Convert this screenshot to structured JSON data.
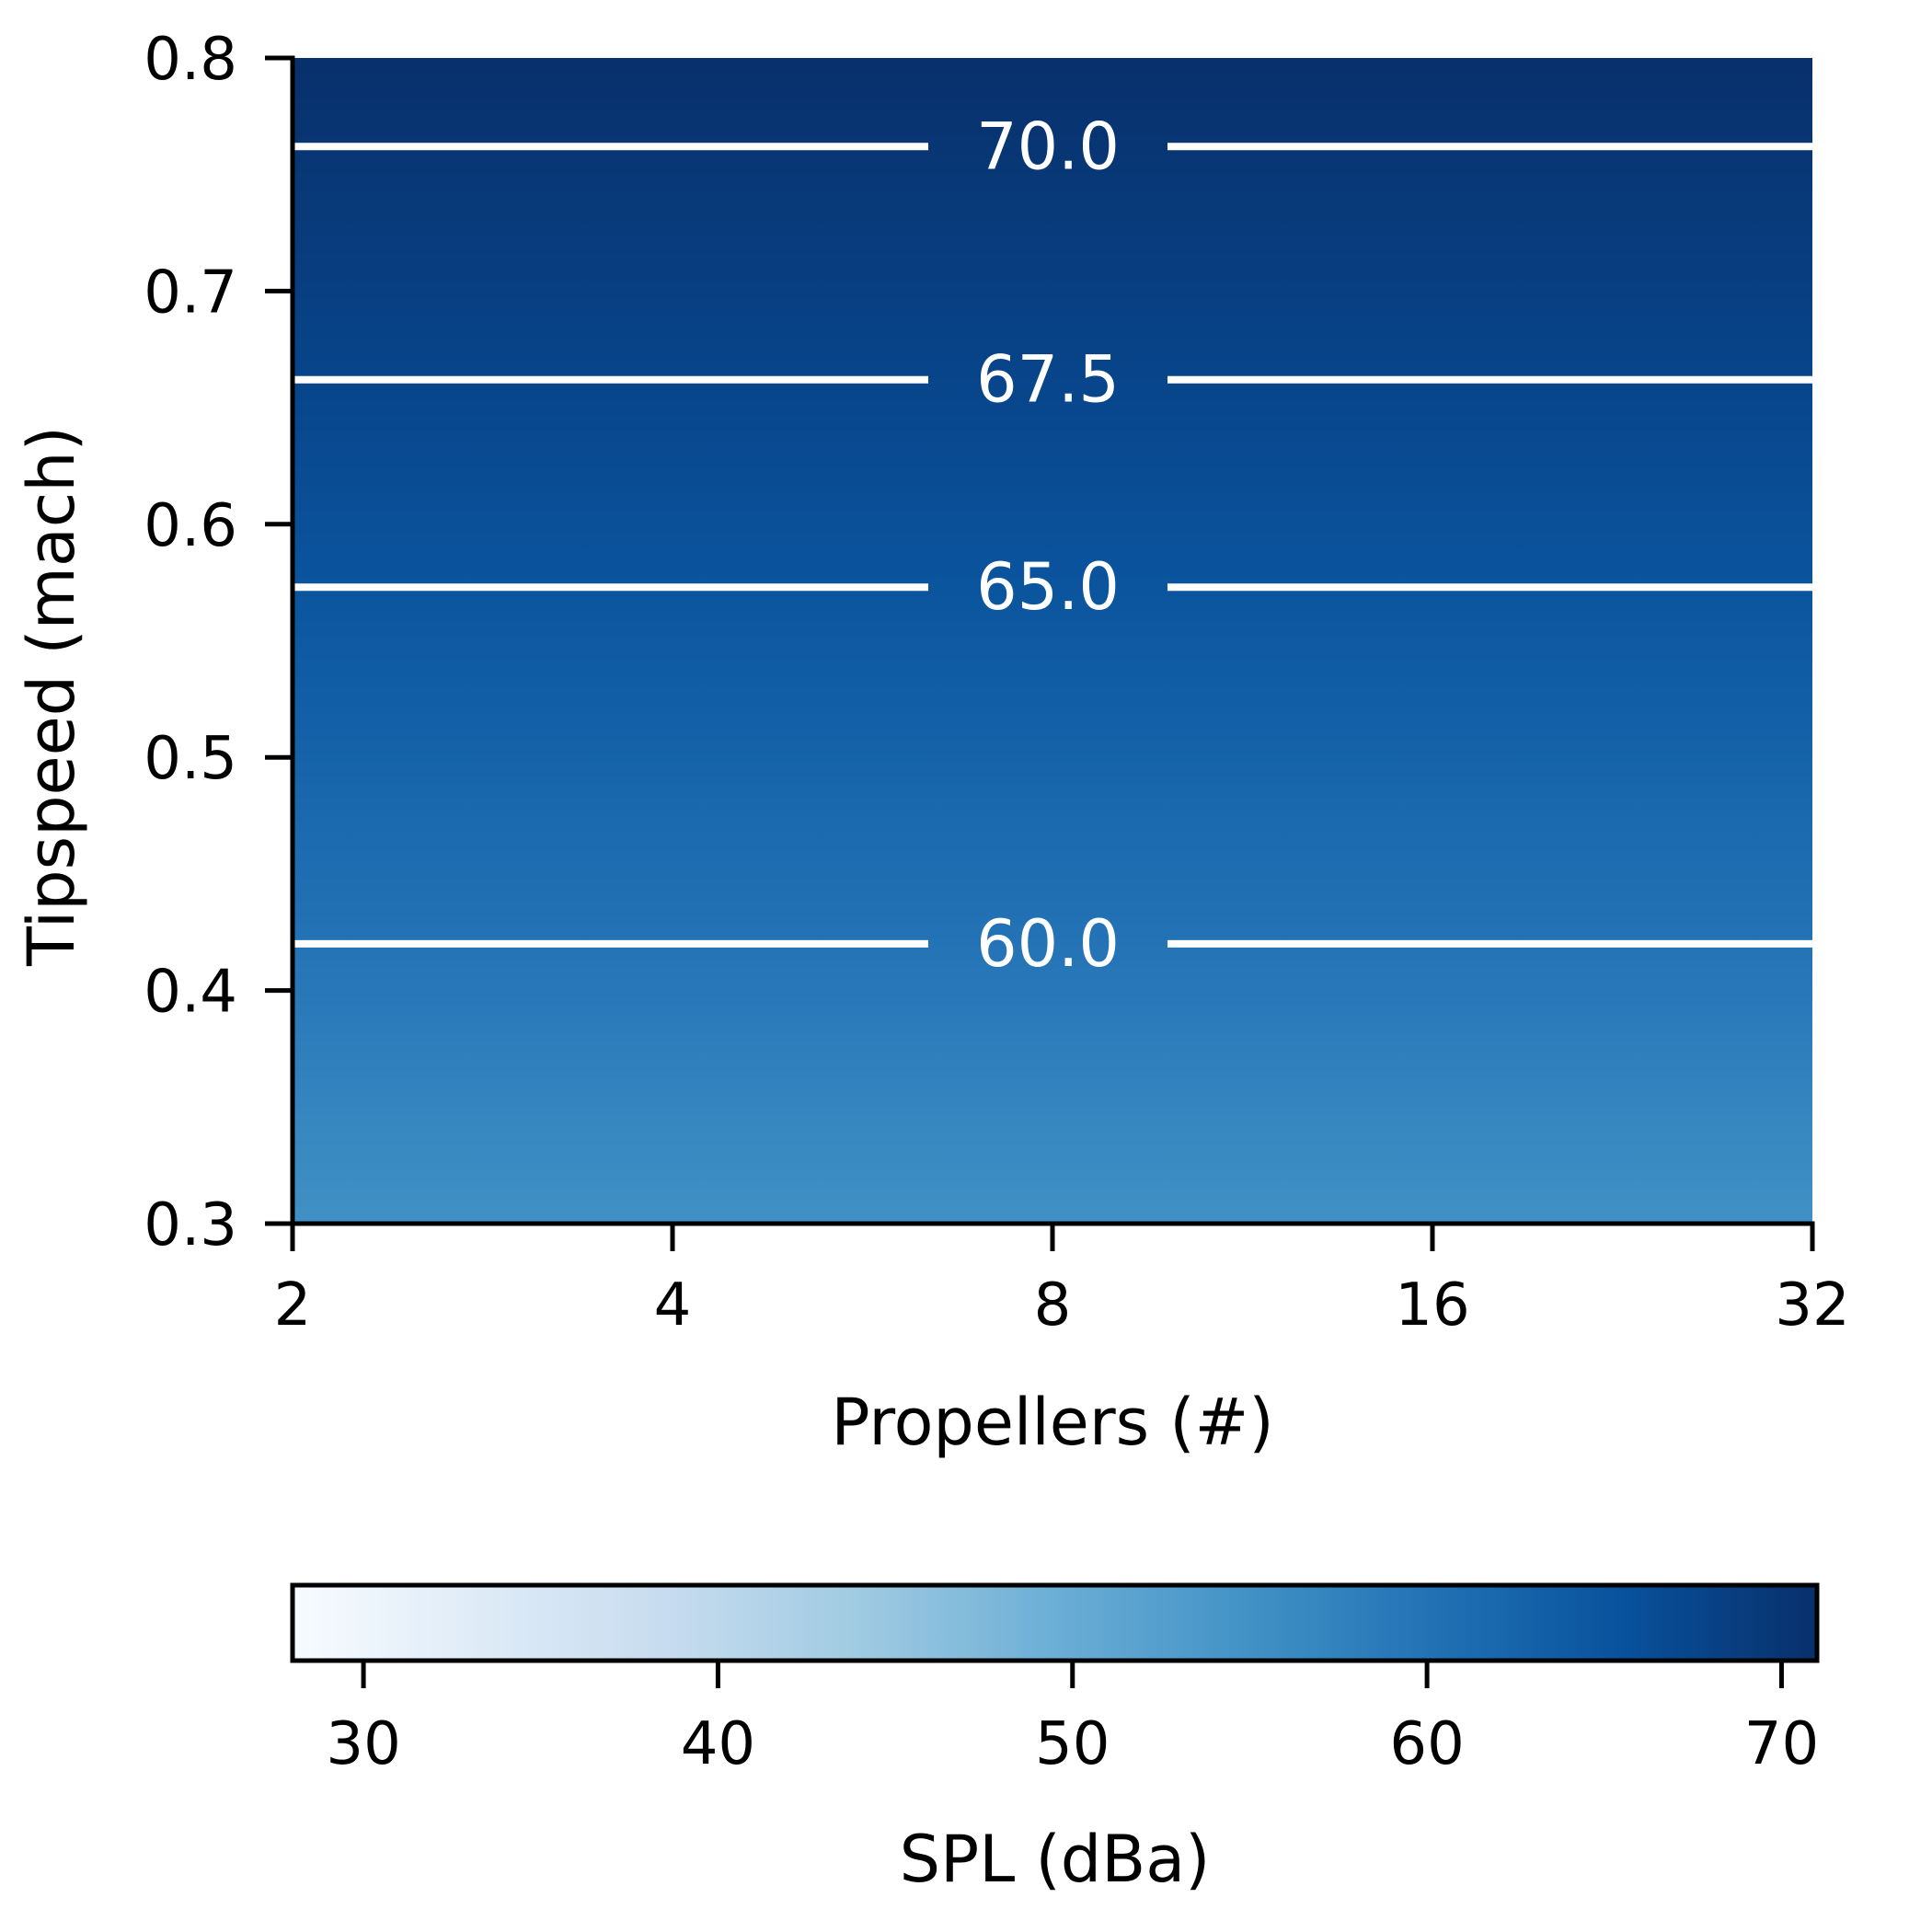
{
  "chart_data": {
    "type": "heatmap",
    "subtype": "filled-contour",
    "title": "",
    "xlabel": "Propellers (#)",
    "ylabel": "Tipspeed (mach)",
    "xscale": "log2",
    "xlim": [
      2,
      32
    ],
    "ylim": [
      0.3,
      0.8
    ],
    "x_ticks": [
      2,
      4,
      8,
      16,
      32
    ],
    "x_tick_labels": [
      "2",
      "4",
      "8",
      "16",
      "32"
    ],
    "y_ticks": [
      0.3,
      0.4,
      0.5,
      0.6,
      0.7,
      0.8
    ],
    "y_tick_labels": [
      "0.3",
      "0.4",
      "0.5",
      "0.6",
      "0.7",
      "0.8"
    ],
    "field_profile": [
      {
        "y": 0.3,
        "value": 55.0
      },
      {
        "y": 0.42,
        "value": 60.0
      },
      {
        "y": 0.57,
        "value": 65.0
      },
      {
        "y": 0.66,
        "value": 67.5
      },
      {
        "y": 0.76,
        "value": 70.0
      },
      {
        "y": 0.8,
        "value": 71.0
      }
    ],
    "contour_lines": [
      {
        "level": 60.0,
        "label": "60.0",
        "y": 0.42,
        "label_x": 8
      },
      {
        "level": 65.0,
        "label": "65.0",
        "y": 0.573,
        "label_x": 8
      },
      {
        "level": 67.5,
        "label": "67.5",
        "y": 0.662,
        "label_x": 8
      },
      {
        "level": 70.0,
        "label": "70.0",
        "y": 0.762,
        "label_x": 8
      }
    ],
    "colorbar": {
      "label": "SPL (dBa)",
      "orientation": "horizontal",
      "placement": "bottom",
      "range": [
        28,
        71
      ],
      "ticks": [
        30,
        40,
        50,
        60,
        70
      ],
      "tick_labels": [
        "30",
        "40",
        "50",
        "60",
        "70"
      ],
      "colormap": "Blues",
      "colormap_stops": [
        "#f7fbff",
        "#deebf7",
        "#c6dbef",
        "#9ecae1",
        "#6baed6",
        "#4292c6",
        "#2171b5",
        "#08519c",
        "#08306b"
      ]
    },
    "grid": false,
    "contour_line_color": "#ffffff"
  }
}
